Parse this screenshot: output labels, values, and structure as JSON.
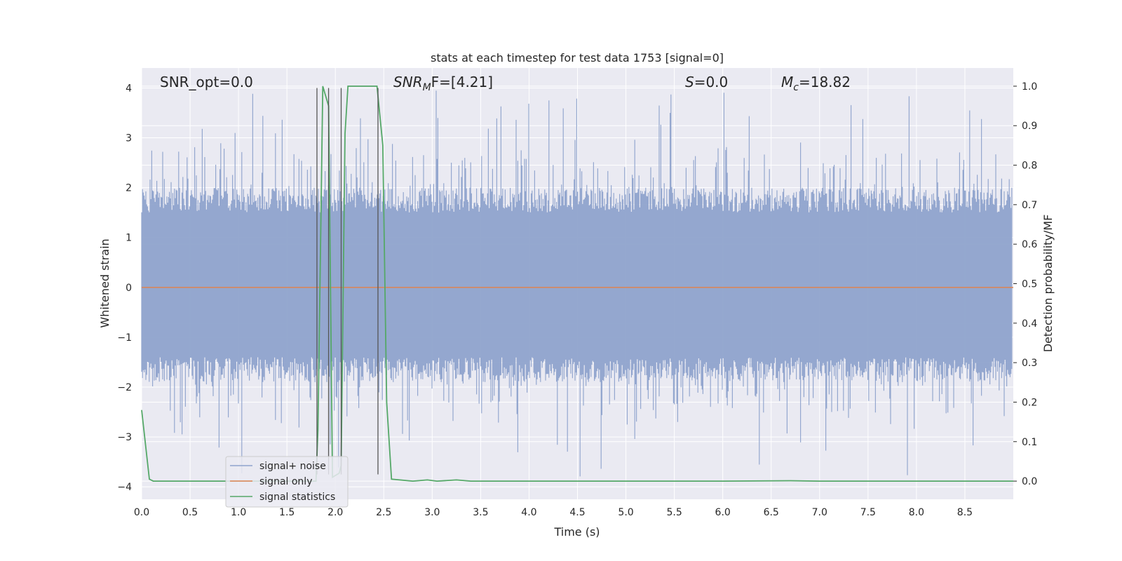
{
  "chart_data": {
    "type": "line",
    "title": "stats at each timestep for test data 1753 [signal=0]",
    "xlabel": "Time (s)",
    "ylabel": "Whitened strain",
    "ylabel_right": "Detection probability/MF",
    "xlim": [
      0,
      9.0
    ],
    "ylim": [
      -4.25,
      4.4
    ],
    "ylim_right": [
      -0.046,
      1.046
    ],
    "xticks": [
      0.0,
      0.5,
      1.0,
      1.5,
      2.0,
      2.5,
      3.0,
      3.5,
      4.0,
      4.5,
      5.0,
      5.5,
      6.0,
      6.5,
      7.0,
      7.5,
      8.0,
      8.5
    ],
    "xtick_labels": [
      "0.0",
      "0.5",
      "1.0",
      "1.5",
      "2.0",
      "2.5",
      "3.0",
      "3.5",
      "4.0",
      "4.5",
      "5.0",
      "5.5",
      "6.0",
      "6.5",
      "7.0",
      "7.5",
      "8.0",
      "8.5"
    ],
    "yticks": [
      4,
      3,
      2,
      1,
      0,
      -1,
      -2,
      -3,
      -4
    ],
    "ytick_labels": [
      "4",
      "3",
      "2",
      "1",
      "0",
      "−1",
      "−2",
      "−3",
      "−4"
    ],
    "yticks_right": [
      1.0,
      0.9,
      0.8,
      0.7,
      0.6,
      0.5,
      0.4,
      0.3,
      0.2,
      0.1,
      0.0
    ],
    "ytick_labels_right": [
      "1.0",
      "0.9",
      "0.8",
      "0.7",
      "0.6",
      "0.5",
      "0.4",
      "0.3",
      "0.2",
      "0.1",
      "0.0"
    ],
    "grid": true,
    "legend_position": "bottom-left",
    "annotations": {
      "snr_opt": "SNR_opt=0.0",
      "snr_mf_sym": "SNR",
      "snr_mf_sub": "M",
      "snr_mf_tail": "F=[4.21]",
      "s_sym": "S",
      "s_tail": "=0.0",
      "mc_sym": "M",
      "mc_sub": "c",
      "mc_tail": "=18.82"
    },
    "series": [
      {
        "name": "signal+ noise",
        "color": "#8fa3cc",
        "noise_envelope": {
          "typical_range": [
            -1.5,
            1.7
          ],
          "max": 3.95,
          "min": -3.8
        }
      },
      {
        "name": "signal only",
        "color": "#dd8452",
        "x": [
          0,
          9.0
        ],
        "y": [
          0,
          0
        ]
      },
      {
        "name": "signal statistics",
        "color": "#55a868",
        "axis": "right",
        "x": [
          0,
          0.08,
          0.12,
          0.5,
          1.0,
          1.5,
          1.8,
          1.82,
          1.87,
          1.93,
          1.97,
          2.04,
          2.06,
          2.1,
          2.13,
          2.43,
          2.49,
          2.53,
          2.58,
          2.8,
          2.95,
          3.05,
          3.25,
          3.4,
          4.0,
          5.0,
          6.0,
          6.7,
          7.0,
          8.0,
          9.0
        ],
        "y": [
          0.18,
          0.005,
          0.0,
          0.0,
          0.0,
          0.0,
          0.0,
          0.13,
          1.0,
          0.95,
          0.01,
          0.02,
          0.04,
          0.88,
          1.0,
          1.0,
          0.85,
          0.2,
          0.005,
          0.0,
          0.003,
          0.0,
          0.003,
          0.0,
          0.0,
          0.0,
          0.0,
          0.001,
          0.0,
          0.0,
          0.0
        ]
      }
    ],
    "vertical_lines": {
      "color": "#555555",
      "x": [
        1.81,
        1.93,
        2.06,
        2.44
      ],
      "y_top": 4.0,
      "y_bottom": -3.75
    }
  }
}
